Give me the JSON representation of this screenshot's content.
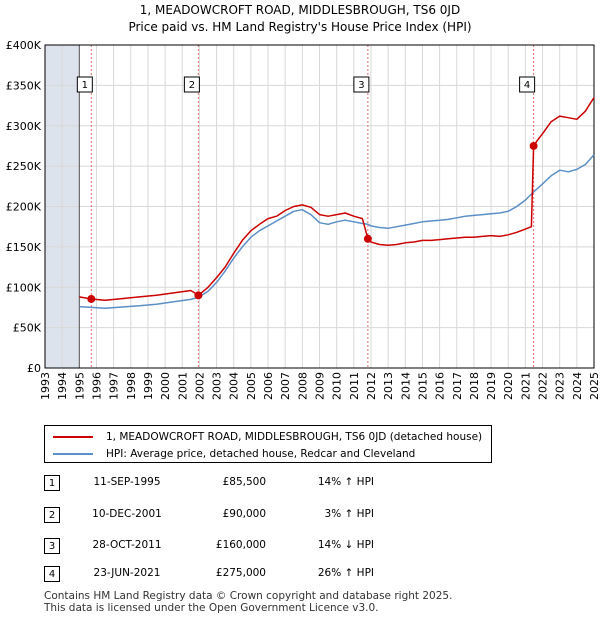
{
  "chart_data": {
    "type": "line",
    "title": "1, MEADOWCROFT ROAD, MIDDLESBROUGH, TS6 0JD",
    "subtitle": "Price paid vs. HM Land Registry's House Price Index (HPI)",
    "xlim": [
      1993,
      2025
    ],
    "ylim": [
      0,
      400000
    ],
    "x_ticks": [
      1993,
      1994,
      1995,
      1996,
      1997,
      1998,
      1999,
      2000,
      2001,
      2002,
      2003,
      2004,
      2005,
      2006,
      2007,
      2008,
      2009,
      2010,
      2011,
      2012,
      2013,
      2014,
      2015,
      2016,
      2017,
      2018,
      2019,
      2020,
      2021,
      2022,
      2023,
      2024,
      2025
    ],
    "y_ticks": [
      {
        "value": 0,
        "label": "£0"
      },
      {
        "value": 50000,
        "label": "£50K"
      },
      {
        "value": 100000,
        "label": "£100K"
      },
      {
        "value": 150000,
        "label": "£150K"
      },
      {
        "value": 200000,
        "label": "£200K"
      },
      {
        "value": 250000,
        "label": "£250K"
      },
      {
        "value": 300000,
        "label": "£300K"
      },
      {
        "value": 350000,
        "label": "£350K"
      },
      {
        "value": 400000,
        "label": "£400K"
      }
    ],
    "data_start_year": 1995,
    "series": [
      {
        "name": "1, MEADOWCROFT ROAD, MIDDLESBROUGH, TS6 0JD (detached house)",
        "color": "#cc0000",
        "points": [
          [
            1995.0,
            88000
          ],
          [
            1995.7,
            85500
          ],
          [
            1996.5,
            84000
          ],
          [
            1997.5,
            86000
          ],
          [
            1998.5,
            88000
          ],
          [
            1999.5,
            90000
          ],
          [
            2000.5,
            93000
          ],
          [
            2001.5,
            96000
          ],
          [
            2001.95,
            90000
          ],
          [
            2002.5,
            100000
          ],
          [
            2003.0,
            112000
          ],
          [
            2003.5,
            125000
          ],
          [
            2004.0,
            142000
          ],
          [
            2004.5,
            158000
          ],
          [
            2005.0,
            170000
          ],
          [
            2005.5,
            178000
          ],
          [
            2006.0,
            185000
          ],
          [
            2006.5,
            188000
          ],
          [
            2007.0,
            195000
          ],
          [
            2007.5,
            200000
          ],
          [
            2008.0,
            202000
          ],
          [
            2008.5,
            199000
          ],
          [
            2009.0,
            190000
          ],
          [
            2009.5,
            188000
          ],
          [
            2010.0,
            190000
          ],
          [
            2010.5,
            192000
          ],
          [
            2011.0,
            188000
          ],
          [
            2011.5,
            185000
          ],
          [
            2011.82,
            160000
          ],
          [
            2012.0,
            156000
          ],
          [
            2012.5,
            153000
          ],
          [
            2013.0,
            152000
          ],
          [
            2013.5,
            153000
          ],
          [
            2014.0,
            155000
          ],
          [
            2014.5,
            156000
          ],
          [
            2015.0,
            158000
          ],
          [
            2015.5,
            158000
          ],
          [
            2016.0,
            159000
          ],
          [
            2016.5,
            160000
          ],
          [
            2017.0,
            161000
          ],
          [
            2017.5,
            162000
          ],
          [
            2018.0,
            162000
          ],
          [
            2018.5,
            163000
          ],
          [
            2019.0,
            164000
          ],
          [
            2019.5,
            163000
          ],
          [
            2020.0,
            165000
          ],
          [
            2020.5,
            168000
          ],
          [
            2021.0,
            172000
          ],
          [
            2021.35,
            175000
          ],
          [
            2021.48,
            275000
          ],
          [
            2021.7,
            282000
          ],
          [
            2022.0,
            290000
          ],
          [
            2022.5,
            305000
          ],
          [
            2023.0,
            312000
          ],
          [
            2023.5,
            310000
          ],
          [
            2024.0,
            308000
          ],
          [
            2024.5,
            318000
          ],
          [
            2025.0,
            335000
          ]
        ]
      },
      {
        "name": "HPI: Average price, detached house, Redcar and Cleveland",
        "color": "#5b8fc7",
        "points": [
          [
            1995.0,
            76000
          ],
          [
            1995.7,
            75000
          ],
          [
            1996.5,
            74000
          ],
          [
            1997.5,
            75500
          ],
          [
            1998.5,
            77000
          ],
          [
            1999.5,
            79000
          ],
          [
            2000.5,
            82000
          ],
          [
            2001.5,
            85000
          ],
          [
            2001.95,
            87500
          ],
          [
            2002.5,
            95000
          ],
          [
            2003.0,
            106000
          ],
          [
            2003.5,
            120000
          ],
          [
            2004.0,
            136000
          ],
          [
            2004.5,
            150000
          ],
          [
            2005.0,
            162000
          ],
          [
            2005.5,
            170000
          ],
          [
            2006.0,
            176000
          ],
          [
            2006.5,
            182000
          ],
          [
            2007.0,
            188000
          ],
          [
            2007.5,
            194000
          ],
          [
            2008.0,
            196000
          ],
          [
            2008.5,
            190000
          ],
          [
            2009.0,
            180000
          ],
          [
            2009.5,
            178000
          ],
          [
            2010.0,
            181000
          ],
          [
            2010.5,
            183000
          ],
          [
            2011.0,
            181000
          ],
          [
            2011.5,
            179000
          ],
          [
            2011.82,
            178000
          ],
          [
            2012.0,
            176000
          ],
          [
            2012.5,
            174000
          ],
          [
            2013.0,
            173000
          ],
          [
            2013.5,
            175000
          ],
          [
            2014.0,
            177000
          ],
          [
            2014.5,
            179000
          ],
          [
            2015.0,
            181000
          ],
          [
            2015.5,
            182000
          ],
          [
            2016.0,
            183000
          ],
          [
            2016.5,
            184000
          ],
          [
            2017.0,
            186000
          ],
          [
            2017.5,
            188000
          ],
          [
            2018.0,
            189000
          ],
          [
            2018.5,
            190000
          ],
          [
            2019.0,
            191000
          ],
          [
            2019.5,
            192000
          ],
          [
            2020.0,
            194000
          ],
          [
            2020.5,
            200000
          ],
          [
            2021.0,
            208000
          ],
          [
            2021.48,
            218000
          ],
          [
            2022.0,
            228000
          ],
          [
            2022.5,
            238000
          ],
          [
            2023.0,
            245000
          ],
          [
            2023.5,
            243000
          ],
          [
            2024.0,
            246000
          ],
          [
            2024.5,
            252000
          ],
          [
            2025.0,
            264000
          ]
        ]
      }
    ],
    "sales": [
      {
        "num": "1",
        "year": 1995.7,
        "value": 85500,
        "date": "11-SEP-1995",
        "price": "£85,500",
        "hpi": "14% ↑ HPI"
      },
      {
        "num": "2",
        "year": 2001.94,
        "value": 90000,
        "date": "10-DEC-2001",
        "price": "£90,000",
        "hpi": "3% ↑ HPI"
      },
      {
        "num": "3",
        "year": 2011.82,
        "value": 160000,
        "date": "28-OCT-2011",
        "price": "£160,000",
        "hpi": "14% ↓ HPI"
      },
      {
        "num": "4",
        "year": 2021.48,
        "value": 275000,
        "date": "23-JUN-2021",
        "price": "£275,000",
        "hpi": "26% ↑ HPI"
      }
    ],
    "grid": true,
    "legend_position": "below"
  },
  "legend": {
    "property_label": "1, MEADOWCROFT ROAD, MIDDLESBROUGH, TS6 0JD (detached house)",
    "hpi_label": "HPI: Average price, detached house, Redcar and Cleveland"
  },
  "footer": {
    "line1": "Contains HM Land Registry data © Crown copyright and database right 2025.",
    "line2": "This data is licensed under the Open Government Licence v3.0."
  },
  "colors": {
    "property": "#cc0000",
    "hpi": "#5b8fc7",
    "grid": "#d8d8d8",
    "shade": "#dde3ec",
    "vline": "#e07070"
  }
}
